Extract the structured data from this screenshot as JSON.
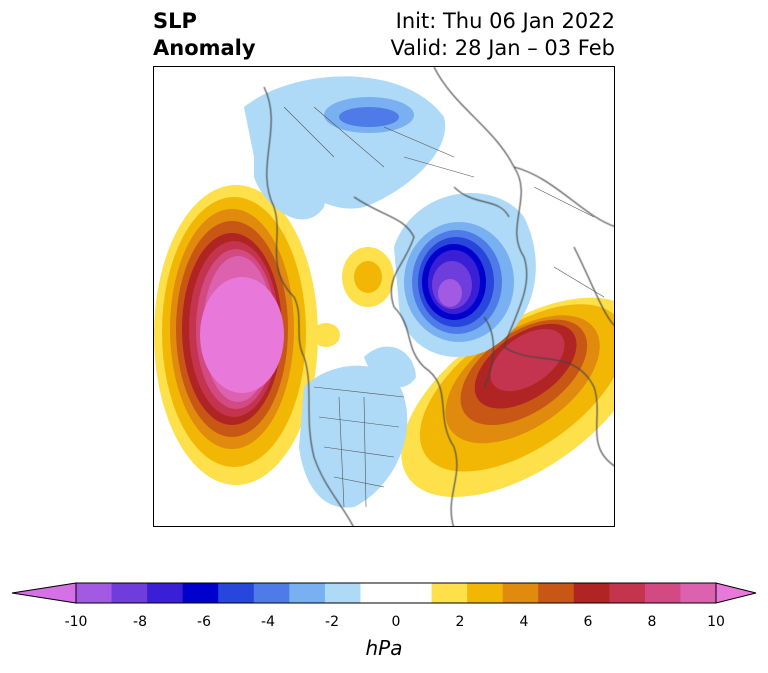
{
  "title": {
    "left_line1": "SLP",
    "left_line2": "Anomaly",
    "right_line1": "Init: Thu 06 Jan 2022",
    "right_line2": "Valid: 28 Jan – 03 Feb"
  },
  "colorbar": {
    "units": "hPa",
    "range": [
      -10,
      10
    ],
    "ticks": [
      "-10",
      "-8",
      "-6",
      "-4",
      "-2",
      "0",
      "2",
      "4",
      "6",
      "8",
      "10"
    ],
    "colors": [
      "#d670e6",
      "#a25ae2",
      "#6f3ddc",
      "#3b1fd6",
      "#0000cc",
      "#2845dc",
      "#4f7be8",
      "#78b0f1",
      "#aedaf8",
      "#ffffff",
      "#ffffff",
      "#fee04b",
      "#f2b705",
      "#e08a0e",
      "#c85715",
      "#b02424",
      "#c4344f",
      "#d34a82",
      "#dc62b0",
      "#e878d9"
    ]
  },
  "map": {
    "projection": "north-polar-stereographic",
    "features": [
      "coastlines",
      "country-borders",
      "state-borders"
    ]
  }
}
